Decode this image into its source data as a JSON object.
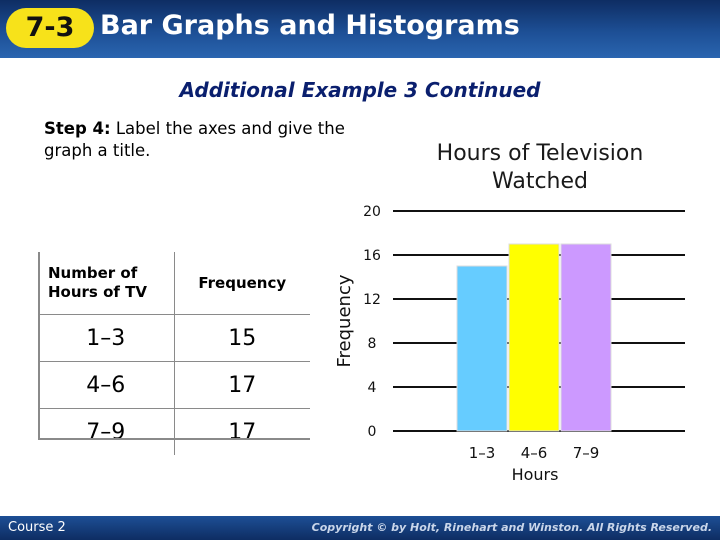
{
  "header": {
    "lesson_number": "7-3",
    "title": "Bar Graphs and Histograms"
  },
  "subtitle": "Additional Example 3 Continued",
  "step": {
    "label": "Step 4:",
    "text": "Label the axes and give the graph a title."
  },
  "table": {
    "headers": [
      "Number of Hours of TV",
      "Frequency"
    ],
    "rows": [
      [
        "1–3",
        "15"
      ],
      [
        "4–6",
        "17"
      ],
      [
        "7–9",
        "17"
      ]
    ]
  },
  "chart_data": {
    "type": "bar",
    "title": "Hours of Television Watched",
    "xlabel": "Hours",
    "ylabel": "Frequency",
    "categories": [
      "1–3",
      "4–6",
      "7–9"
    ],
    "values": [
      15,
      17,
      17
    ],
    "bar_colors": [
      "#66ccff",
      "#ffff00",
      "#cc99ff"
    ],
    "ylim": [
      0,
      20
    ],
    "yticks": [
      0,
      4,
      8,
      12,
      16,
      20
    ],
    "grid": true,
    "histogram": true
  },
  "footer": {
    "course": "Course 2",
    "copyright": "Copyright © by Holt, Rinehart and Winston. All Rights Reserved."
  },
  "colors": {
    "header_bg": "#1d4f95",
    "badge": "#f7e21a",
    "subtitle": "#0a1f6e"
  }
}
